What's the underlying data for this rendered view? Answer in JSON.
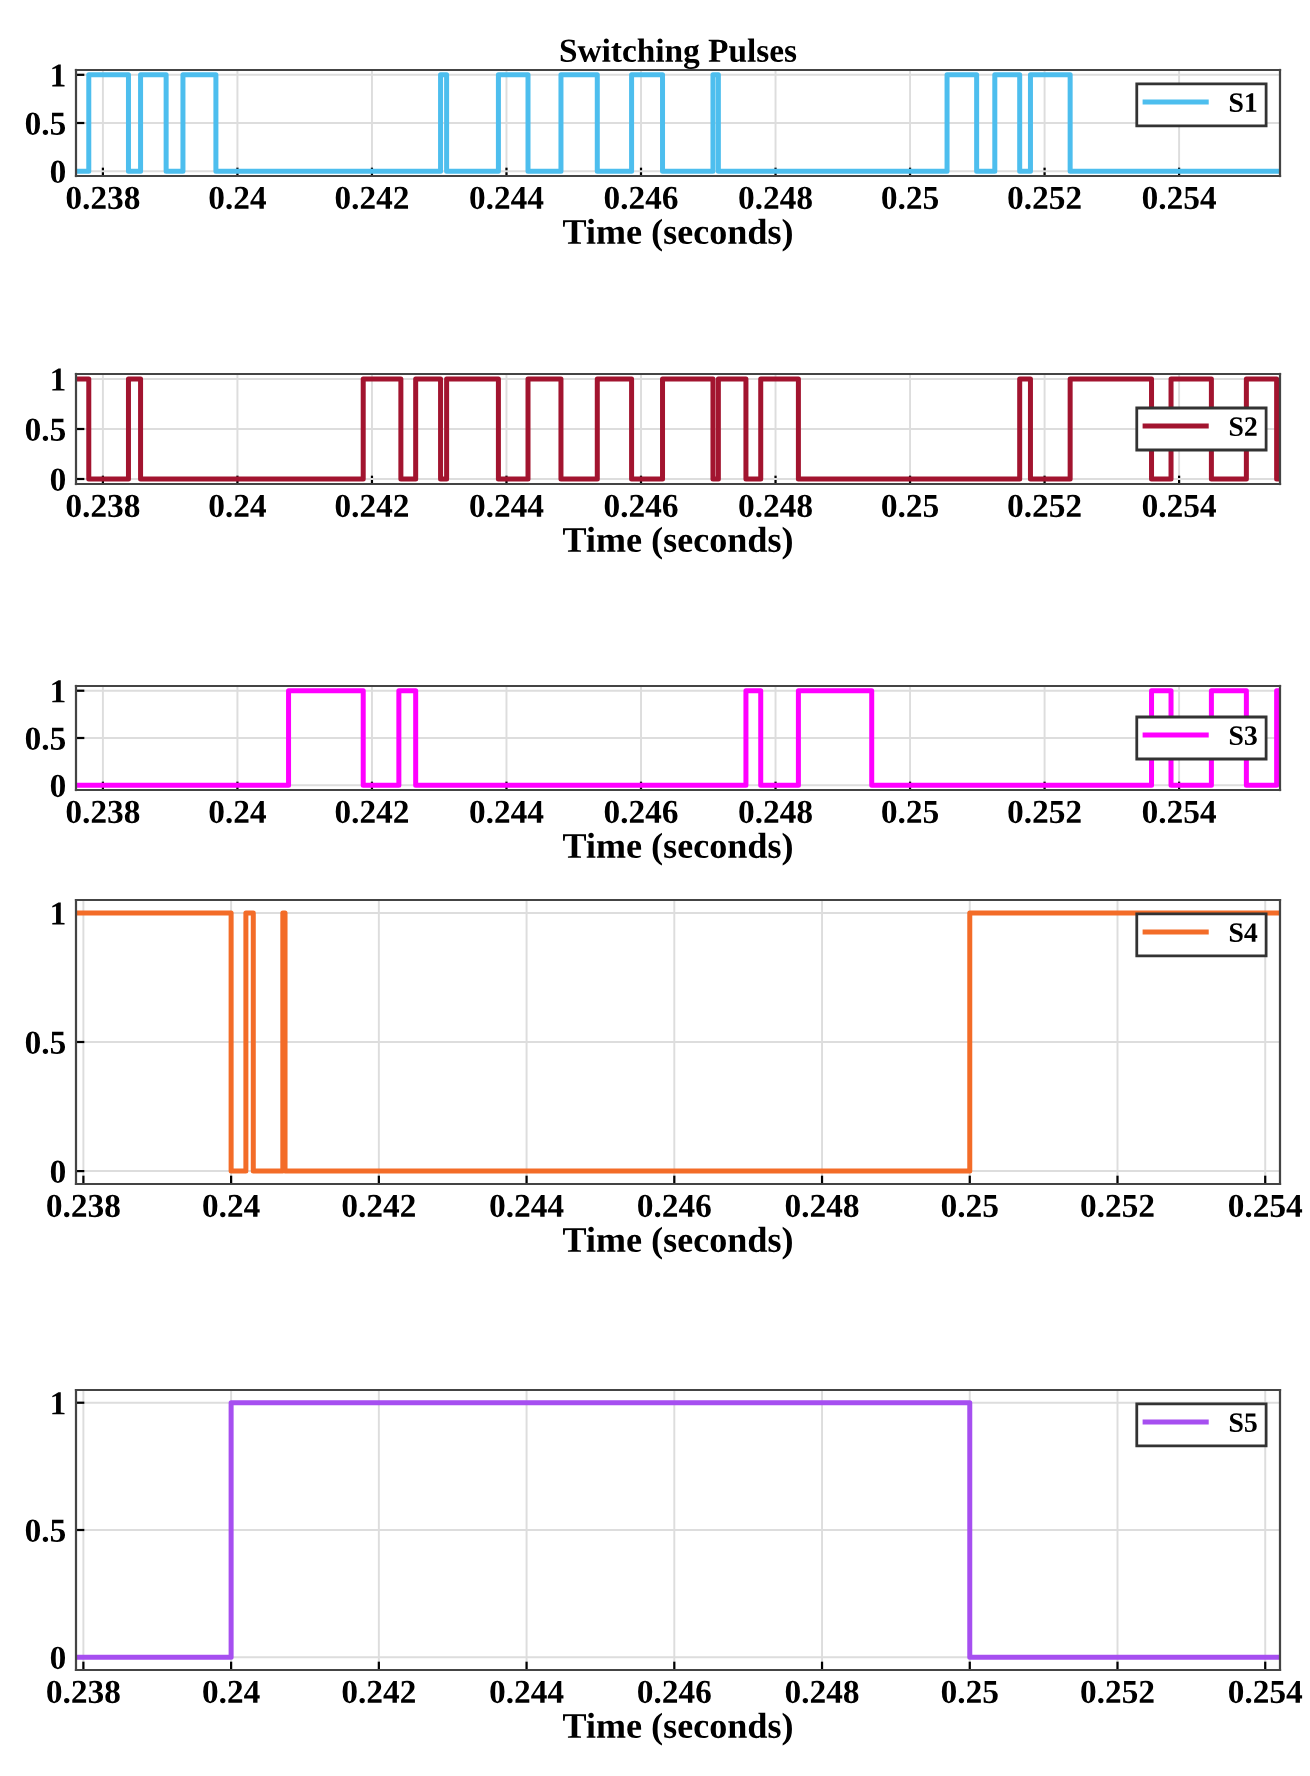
{
  "chart_data": [
    {
      "type": "step",
      "title": "Switching Pulses",
      "xlabel": "Time (seconds)",
      "xlim": [
        0.2376,
        0.2555
      ],
      "xticks": [
        0.238,
        0.24,
        0.242,
        0.244,
        0.246,
        0.248,
        0.25,
        0.252,
        0.254
      ],
      "ylim": [
        -0.05,
        1.05
      ],
      "yticks": [
        0,
        0.5,
        1
      ],
      "grid": true,
      "legend": "top right",
      "series": [
        {
          "name": "S1",
          "color": "#4dbeee",
          "x": [
            0.2376,
            0.23779,
            0.23838,
            0.23856,
            0.23894,
            0.23919,
            0.23968,
            0.24302,
            0.24311,
            0.24388,
            0.24432,
            0.24481,
            0.24535,
            0.24586,
            0.24632,
            0.24707,
            0.24715,
            0.25055,
            0.25099,
            0.25126,
            0.25163,
            0.25179,
            0.25238,
            0.2555
          ],
          "values": [
            0,
            1,
            0,
            1,
            0,
            1,
            0,
            1,
            0,
            1,
            0,
            1,
            0,
            1,
            0,
            1,
            0,
            1,
            0,
            1,
            0,
            1,
            0,
            0
          ]
        }
      ]
    },
    {
      "type": "step",
      "xlabel": "Time (seconds)",
      "xlim": [
        0.2376,
        0.2555
      ],
      "xticks": [
        0.238,
        0.24,
        0.242,
        0.244,
        0.246,
        0.248,
        0.25,
        0.252,
        0.254
      ],
      "ylim": [
        -0.05,
        1.05
      ],
      "yticks": [
        0,
        0.5,
        1
      ],
      "grid": true,
      "legend": "right",
      "series": [
        {
          "name": "S2",
          "color": "#a2142f",
          "x": [
            0.2376,
            0.23779,
            0.23838,
            0.23856,
            0.24187,
            0.24243,
            0.24265,
            0.24302,
            0.24311,
            0.24388,
            0.24432,
            0.24481,
            0.24535,
            0.24586,
            0.24632,
            0.24707,
            0.24715,
            0.24756,
            0.24778,
            0.24834,
            0.25163,
            0.25179,
            0.25238,
            0.25359,
            0.25388,
            0.25448,
            0.255,
            0.25545,
            0.2555
          ],
          "values": [
            1,
            0,
            1,
            0,
            1,
            0,
            1,
            0,
            1,
            0,
            1,
            0,
            1,
            0,
            1,
            0,
            1,
            0,
            1,
            0,
            1,
            0,
            1,
            0,
            1,
            0,
            1,
            0,
            0
          ]
        }
      ]
    },
    {
      "type": "step",
      "xlabel": "Time (seconds)",
      "xlim": [
        0.2376,
        0.2555
      ],
      "xticks": [
        0.238,
        0.24,
        0.242,
        0.244,
        0.246,
        0.248,
        0.25,
        0.252,
        0.254
      ],
      "ylim": [
        -0.05,
        1.05
      ],
      "yticks": [
        0,
        0.5,
        1
      ],
      "grid": true,
      "legend": "right",
      "series": [
        {
          "name": "S3",
          "color": "#ff00ff",
          "x": [
            0.2376,
            0.24076,
            0.24187,
            0.2424,
            0.24265,
            0.24756,
            0.24778,
            0.24834,
            0.24943,
            0.25359,
            0.25388,
            0.25448,
            0.255,
            0.25545,
            0.2555
          ],
          "values": [
            0,
            1,
            0,
            1,
            0,
            1,
            0,
            1,
            0,
            1,
            0,
            1,
            0,
            1,
            1
          ]
        }
      ]
    },
    {
      "type": "step",
      "xlabel": "Time (seconds)",
      "xlim": [
        0.2379,
        0.2542
      ],
      "xticks": [
        0.238,
        0.24,
        0.242,
        0.244,
        0.246,
        0.248,
        0.25,
        0.252,
        0.254
      ],
      "ylim": [
        -0.05,
        1.05
      ],
      "yticks": [
        0,
        0.5,
        1
      ],
      "grid": true,
      "legend": "top right",
      "series": [
        {
          "name": "S4",
          "color": "#f36c28",
          "x": [
            0.2379,
            0.24,
            0.2402,
            0.2403,
            0.2407,
            0.24073,
            0.25,
            0.2542
          ],
          "values": [
            1,
            0,
            1,
            0,
            1,
            0,
            1,
            1
          ]
        }
      ]
    },
    {
      "type": "step",
      "xlabel": "Time (seconds)",
      "xlim": [
        0.2379,
        0.2542
      ],
      "xticks": [
        0.238,
        0.24,
        0.242,
        0.244,
        0.246,
        0.248,
        0.25,
        0.252,
        0.254
      ],
      "ylim": [
        -0.05,
        1.05
      ],
      "yticks": [
        0,
        0.5,
        1
      ],
      "grid": true,
      "legend": "top right",
      "series": [
        {
          "name": "S5",
          "color": "#a64ff0",
          "x": [
            0.2379,
            0.24,
            0.25,
            0.2542
          ],
          "values": [
            0,
            1,
            0,
            0
          ]
        }
      ]
    }
  ]
}
